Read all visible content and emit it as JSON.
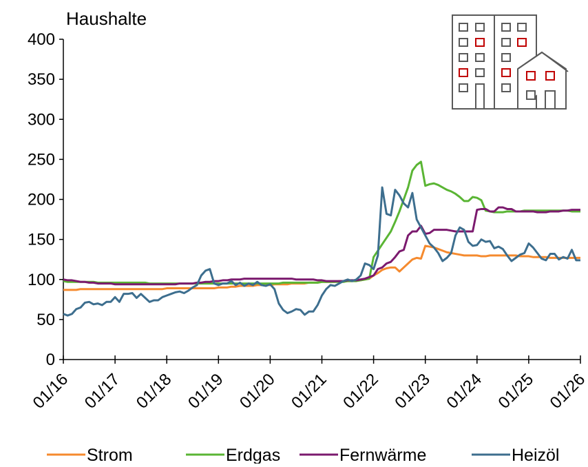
{
  "chart_data": {
    "type": "line",
    "title": "Haushalte",
    "categories": [
      "01/16",
      null,
      null,
      null,
      null,
      null,
      null,
      null,
      null,
      null,
      null,
      null,
      "01/17",
      null,
      null,
      null,
      null,
      null,
      null,
      null,
      null,
      null,
      null,
      null,
      "01/18",
      null,
      null,
      null,
      null,
      null,
      null,
      null,
      null,
      null,
      null,
      null,
      "01/19",
      null,
      null,
      null,
      null,
      null,
      null,
      null,
      null,
      null,
      null,
      null,
      "01/20",
      null,
      null,
      null,
      null,
      null,
      null,
      null,
      null,
      null,
      null,
      null,
      "01/21",
      null,
      null,
      null,
      null,
      null,
      null,
      null,
      null,
      null,
      null,
      null,
      "01/22",
      null,
      null,
      null,
      null,
      null,
      null,
      null,
      null,
      null,
      null,
      null,
      "01/23",
      null,
      null,
      null,
      null,
      null,
      null,
      null,
      null,
      null,
      null,
      null,
      "01/24",
      null,
      null,
      null,
      null,
      null,
      null,
      null,
      null,
      null,
      null,
      null,
      "01/25",
      null,
      null,
      null,
      null,
      null,
      null,
      null,
      null,
      null,
      null,
      null,
      "01/26"
    ],
    "series": [
      {
        "name": "Strom",
        "color": "#f58a2e",
        "values": [
          87,
          87,
          87,
          87,
          88,
          88,
          88,
          88,
          88,
          88,
          88,
          88,
          88,
          88,
          88,
          88,
          88,
          88,
          88,
          88,
          88,
          88,
          88,
          88,
          89,
          89,
          89,
          89,
          89,
          89,
          89,
          89,
          89,
          89,
          89,
          89,
          90,
          90,
          90,
          91,
          91,
          92,
          92,
          92,
          92,
          93,
          93,
          93,
          93,
          94,
          94,
          94,
          94,
          95,
          95,
          95,
          95,
          96,
          96,
          96,
          97,
          97,
          97,
          97,
          98,
          98,
          98,
          98,
          99,
          99,
          100,
          101,
          105,
          108,
          112,
          114,
          115,
          115,
          110,
          115,
          120,
          125,
          127,
          126,
          142,
          141,
          140,
          138,
          136,
          134,
          133,
          132,
          131,
          130,
          130,
          130,
          130,
          129,
          129,
          130,
          130,
          130,
          130,
          130,
          130,
          130,
          129,
          129,
          129,
          128,
          128,
          128,
          128,
          127,
          127,
          127,
          127,
          127,
          127,
          127,
          127
        ]
      },
      {
        "name": "Erdgas",
        "color": "#5ab534",
        "values": [
          98,
          97,
          97,
          97,
          97,
          97,
          97,
          97,
          96,
          96,
          96,
          96,
          96,
          96,
          96,
          96,
          96,
          96,
          96,
          96,
          95,
          95,
          95,
          95,
          95,
          95,
          95,
          95,
          95,
          95,
          95,
          95,
          95,
          95,
          95,
          95,
          95,
          95,
          95,
          95,
          95,
          95,
          95,
          95,
          95,
          95,
          95,
          95,
          95,
          95,
          95,
          96,
          96,
          96,
          96,
          96,
          96,
          96,
          96,
          96,
          97,
          97,
          97,
          97,
          97,
          97,
          98,
          98,
          98,
          99,
          100,
          101,
          128,
          136,
          144,
          152,
          160,
          172,
          185,
          200,
          215,
          236,
          243,
          247,
          217,
          219,
          220,
          218,
          215,
          212,
          210,
          207,
          203,
          198,
          198,
          203,
          202,
          199,
          186,
          185,
          184,
          184,
          184,
          185,
          185,
          185,
          185,
          186,
          186,
          186,
          186,
          186,
          186,
          186,
          186,
          186,
          186,
          186,
          185,
          185,
          185
        ]
      },
      {
        "name": "Fernwärme",
        "color": "#7b1a6e",
        "values": [
          100,
          99,
          99,
          98,
          97,
          97,
          96,
          96,
          95,
          95,
          95,
          95,
          94,
          94,
          94,
          94,
          94,
          94,
          94,
          94,
          94,
          94,
          94,
          94,
          94,
          94,
          94,
          95,
          95,
          95,
          95,
          96,
          96,
          97,
          97,
          98,
          98,
          99,
          99,
          100,
          100,
          100,
          101,
          101,
          101,
          101,
          101,
          101,
          101,
          101,
          101,
          101,
          101,
          101,
          100,
          100,
          100,
          100,
          100,
          99,
          99,
          98,
          98,
          98,
          98,
          98,
          99,
          99,
          99,
          100,
          101,
          103,
          105,
          113,
          115,
          120,
          122,
          128,
          135,
          137,
          155,
          160,
          160,
          167,
          157,
          158,
          162,
          162,
          162,
          162,
          161,
          160,
          160,
          160,
          160,
          160,
          187,
          188,
          188,
          185,
          185,
          190,
          190,
          188,
          188,
          185,
          185,
          185,
          185,
          185,
          184,
          184,
          184,
          185,
          185,
          185,
          186,
          186,
          187,
          187,
          187
        ]
      },
      {
        "name": "Heizöl",
        "color": "#3d6e8e",
        "values": [
          57,
          55,
          57,
          63,
          65,
          71,
          72,
          69,
          70,
          68,
          72,
          72,
          78,
          72,
          82,
          82,
          83,
          77,
          82,
          77,
          72,
          74,
          74,
          78,
          80,
          82,
          84,
          85,
          83,
          86,
          90,
          93,
          105,
          111,
          113,
          95,
          93,
          95,
          95,
          98,
          93,
          96,
          92,
          95,
          93,
          97,
          93,
          92,
          94,
          88,
          70,
          62,
          58,
          60,
          63,
          62,
          56,
          60,
          60,
          68,
          80,
          88,
          93,
          92,
          95,
          98,
          100,
          98,
          100,
          105,
          120,
          118,
          113,
          130,
          215,
          182,
          180,
          212,
          205,
          195,
          190,
          208,
          175,
          165,
          155,
          145,
          140,
          133,
          123,
          127,
          133,
          155,
          165,
          162,
          147,
          142,
          143,
          150,
          147,
          148,
          139,
          141,
          138,
          130,
          123,
          127,
          131,
          133,
          145,
          140,
          133,
          126,
          124,
          132,
          132,
          125,
          128,
          126,
          137,
          124,
          124
        ]
      }
    ],
    "ylim": [
      0,
      400
    ],
    "yticks": [
      0,
      50,
      100,
      150,
      200,
      250,
      300,
      350,
      400
    ],
    "legend": "bottom"
  }
}
